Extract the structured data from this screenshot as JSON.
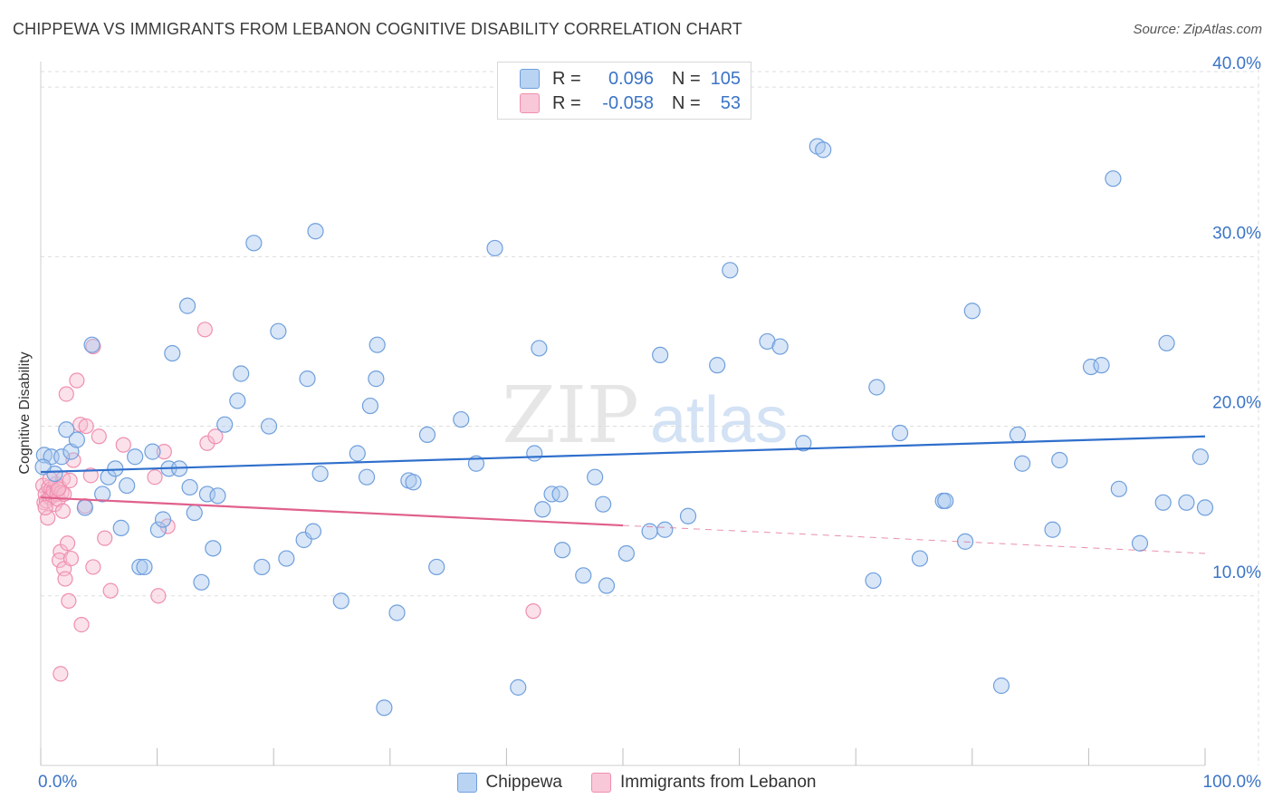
{
  "title": "CHIPPEWA VS IMMIGRANTS FROM LEBANON COGNITIVE DISABILITY CORRELATION CHART",
  "source": "Source: ZipAtlas.com",
  "watermark": {
    "zip": "ZIP",
    "atlas": "atlas"
  },
  "colors": {
    "blue_fill": "#a9c8ee",
    "blue_stroke": "#6f9fdd",
    "blue_line": "#2f6fcc",
    "pink_fill": "#f6bcd0",
    "pink_stroke": "#ef8fb0",
    "pink_line": "#e0608c",
    "axis_text": "#3b74c6",
    "grid": "#dddddd"
  },
  "legend": {
    "rows": [
      {
        "r_label": "R =",
        "r_value": "0.096",
        "n_label": "N =",
        "n_value": "105"
      },
      {
        "r_label": "R =",
        "r_value": "-0.058",
        "n_label": "N =",
        "n_value": "53"
      }
    ]
  },
  "bottom_legend": [
    "Chippewa",
    "Immigrants from Lebanon"
  ],
  "chart_data": {
    "type": "scatter",
    "title": "CHIPPEWA VS IMMIGRANTS FROM LEBANON COGNITIVE DISABILITY CORRELATION CHART",
    "xlabel": "",
    "ylabel": "Cognitive Disability",
    "xlim": [
      0,
      100
    ],
    "ylim": [
      0,
      41.5
    ],
    "x_tick_labels": [
      "0.0%",
      "100.0%"
    ],
    "y_ticks": [
      10,
      20,
      30,
      40
    ],
    "y_tick_labels": [
      "10.0%",
      "20.0%",
      "30.0%",
      "40.0%"
    ],
    "grid": true,
    "series": [
      {
        "name": "Chippewa",
        "R": 0.096,
        "N": 105,
        "trend": {
          "x": [
            0,
            100
          ],
          "y": [
            17.3,
            19.4
          ],
          "dashed_from": null
        },
        "points": [
          [
            0.3,
            18.3
          ],
          [
            0.9,
            18.2
          ],
          [
            1.2,
            17.2
          ],
          [
            1.8,
            18.2
          ],
          [
            2.2,
            19.8
          ],
          [
            2.6,
            18.5
          ],
          [
            3.1,
            19.2
          ],
          [
            3.8,
            15.2
          ],
          [
            4.4,
            24.8
          ],
          [
            5.3,
            16.0
          ],
          [
            5.8,
            17.0
          ],
          [
            6.4,
            17.5
          ],
          [
            6.9,
            14.0
          ],
          [
            7.4,
            16.5
          ],
          [
            8.1,
            18.2
          ],
          [
            8.5,
            11.7
          ],
          [
            8.9,
            11.7
          ],
          [
            9.6,
            18.5
          ],
          [
            10.1,
            13.9
          ],
          [
            10.5,
            14.5
          ],
          [
            11.0,
            17.5
          ],
          [
            11.3,
            24.3
          ],
          [
            11.9,
            17.5
          ],
          [
            12.6,
            27.1
          ],
          [
            12.8,
            16.4
          ],
          [
            13.2,
            14.9
          ],
          [
            13.8,
            10.8
          ],
          [
            14.3,
            16.0
          ],
          [
            14.8,
            12.8
          ],
          [
            15.2,
            15.9
          ],
          [
            15.8,
            20.1
          ],
          [
            16.9,
            21.5
          ],
          [
            17.2,
            23.1
          ],
          [
            18.3,
            30.8
          ],
          [
            19.0,
            11.7
          ],
          [
            19.6,
            20.0
          ],
          [
            20.4,
            25.6
          ],
          [
            21.1,
            12.2
          ],
          [
            22.6,
            13.3
          ],
          [
            22.9,
            22.8
          ],
          [
            23.4,
            13.8
          ],
          [
            23.6,
            31.5
          ],
          [
            24.0,
            17.2
          ],
          [
            25.8,
            9.7
          ],
          [
            27.2,
            18.4
          ],
          [
            28.0,
            17.0
          ],
          [
            28.3,
            21.2
          ],
          [
            28.8,
            22.8
          ],
          [
            28.9,
            24.8
          ],
          [
            29.5,
            3.4
          ],
          [
            30.6,
            9.0
          ],
          [
            31.6,
            16.8
          ],
          [
            32.0,
            16.7
          ],
          [
            33.2,
            19.5
          ],
          [
            34.0,
            11.7
          ],
          [
            36.1,
            20.4
          ],
          [
            37.4,
            17.8
          ],
          [
            39.0,
            30.5
          ],
          [
            41.0,
            4.6
          ],
          [
            42.4,
            18.4
          ],
          [
            42.8,
            24.6
          ],
          [
            43.1,
            15.1
          ],
          [
            43.9,
            16.0
          ],
          [
            44.6,
            16.0
          ],
          [
            44.8,
            12.7
          ],
          [
            46.6,
            11.2
          ],
          [
            47.6,
            17.0
          ],
          [
            48.3,
            15.4
          ],
          [
            48.6,
            10.6
          ],
          [
            50.3,
            12.5
          ],
          [
            52.3,
            13.8
          ],
          [
            53.2,
            24.2
          ],
          [
            53.6,
            13.9
          ],
          [
            55.6,
            14.7
          ],
          [
            58.1,
            23.6
          ],
          [
            59.2,
            29.2
          ],
          [
            62.4,
            25.0
          ],
          [
            63.5,
            24.7
          ],
          [
            65.5,
            19.0
          ],
          [
            66.7,
            36.5
          ],
          [
            67.2,
            36.3
          ],
          [
            71.5,
            10.9
          ],
          [
            71.8,
            22.3
          ],
          [
            73.8,
            19.6
          ],
          [
            75.5,
            12.2
          ],
          [
            77.5,
            15.6
          ],
          [
            77.7,
            15.6
          ],
          [
            79.4,
            13.2
          ],
          [
            80.0,
            26.8
          ],
          [
            82.5,
            4.7
          ],
          [
            83.9,
            19.5
          ],
          [
            84.3,
            17.8
          ],
          [
            86.9,
            13.9
          ],
          [
            87.5,
            18.0
          ],
          [
            90.2,
            23.5
          ],
          [
            91.1,
            23.6
          ],
          [
            92.1,
            34.6
          ],
          [
            92.6,
            16.3
          ],
          [
            94.4,
            13.1
          ],
          [
            96.4,
            15.5
          ],
          [
            96.7,
            24.9
          ],
          [
            98.4,
            15.5
          ],
          [
            99.6,
            18.2
          ],
          [
            100.0,
            15.2
          ],
          [
            0.2,
            17.6
          ]
        ]
      },
      {
        "name": "Immigrants from Lebanon",
        "R": -0.058,
        "N": 53,
        "trend": {
          "x": [
            0,
            100
          ],
          "y": [
            15.8,
            12.5
          ],
          "dashed_from": 50
        },
        "points": [
          [
            0.2,
            16.5
          ],
          [
            0.3,
            15.5
          ],
          [
            0.4,
            16.0
          ],
          [
            0.5,
            15.6
          ],
          [
            0.6,
            14.6
          ],
          [
            0.7,
            16.4
          ],
          [
            0.8,
            15.8
          ],
          [
            0.9,
            16.3
          ],
          [
            1.0,
            15.9
          ],
          [
            1.1,
            16.2
          ],
          [
            1.2,
            15.4
          ],
          [
            1.3,
            16.6
          ],
          [
            1.4,
            16.0
          ],
          [
            1.5,
            15.7
          ],
          [
            1.6,
            16.4
          ],
          [
            1.7,
            12.6
          ],
          [
            1.8,
            16.1
          ],
          [
            1.9,
            16.9
          ],
          [
            1.6,
            12.1
          ],
          [
            1.7,
            5.4
          ],
          [
            1.9,
            15.0
          ],
          [
            2.0,
            11.6
          ],
          [
            2.1,
            11.0
          ],
          [
            2.2,
            21.9
          ],
          [
            2.3,
            13.1
          ],
          [
            2.4,
            9.7
          ],
          [
            2.5,
            16.8
          ],
          [
            2.6,
            12.2
          ],
          [
            3.1,
            22.7
          ],
          [
            3.4,
            20.1
          ],
          [
            3.5,
            8.3
          ],
          [
            3.8,
            15.3
          ],
          [
            4.3,
            17.1
          ],
          [
            4.5,
            24.7
          ],
          [
            4.5,
            11.7
          ],
          [
            5.0,
            19.4
          ],
          [
            5.5,
            13.4
          ],
          [
            6.0,
            10.3
          ],
          [
            7.1,
            18.9
          ],
          [
            9.8,
            17.0
          ],
          [
            10.1,
            10.0
          ],
          [
            10.6,
            18.5
          ],
          [
            10.9,
            14.1
          ],
          [
            14.1,
            25.7
          ],
          [
            14.3,
            19.0
          ],
          [
            15.0,
            19.4
          ],
          [
            42.3,
            9.1
          ],
          [
            2.0,
            16.0
          ],
          [
            1.5,
            16.3
          ],
          [
            0.4,
            15.2
          ],
          [
            2.8,
            18.0
          ],
          [
            3.9,
            20.0
          ],
          [
            0.8,
            16.9
          ]
        ]
      }
    ]
  }
}
